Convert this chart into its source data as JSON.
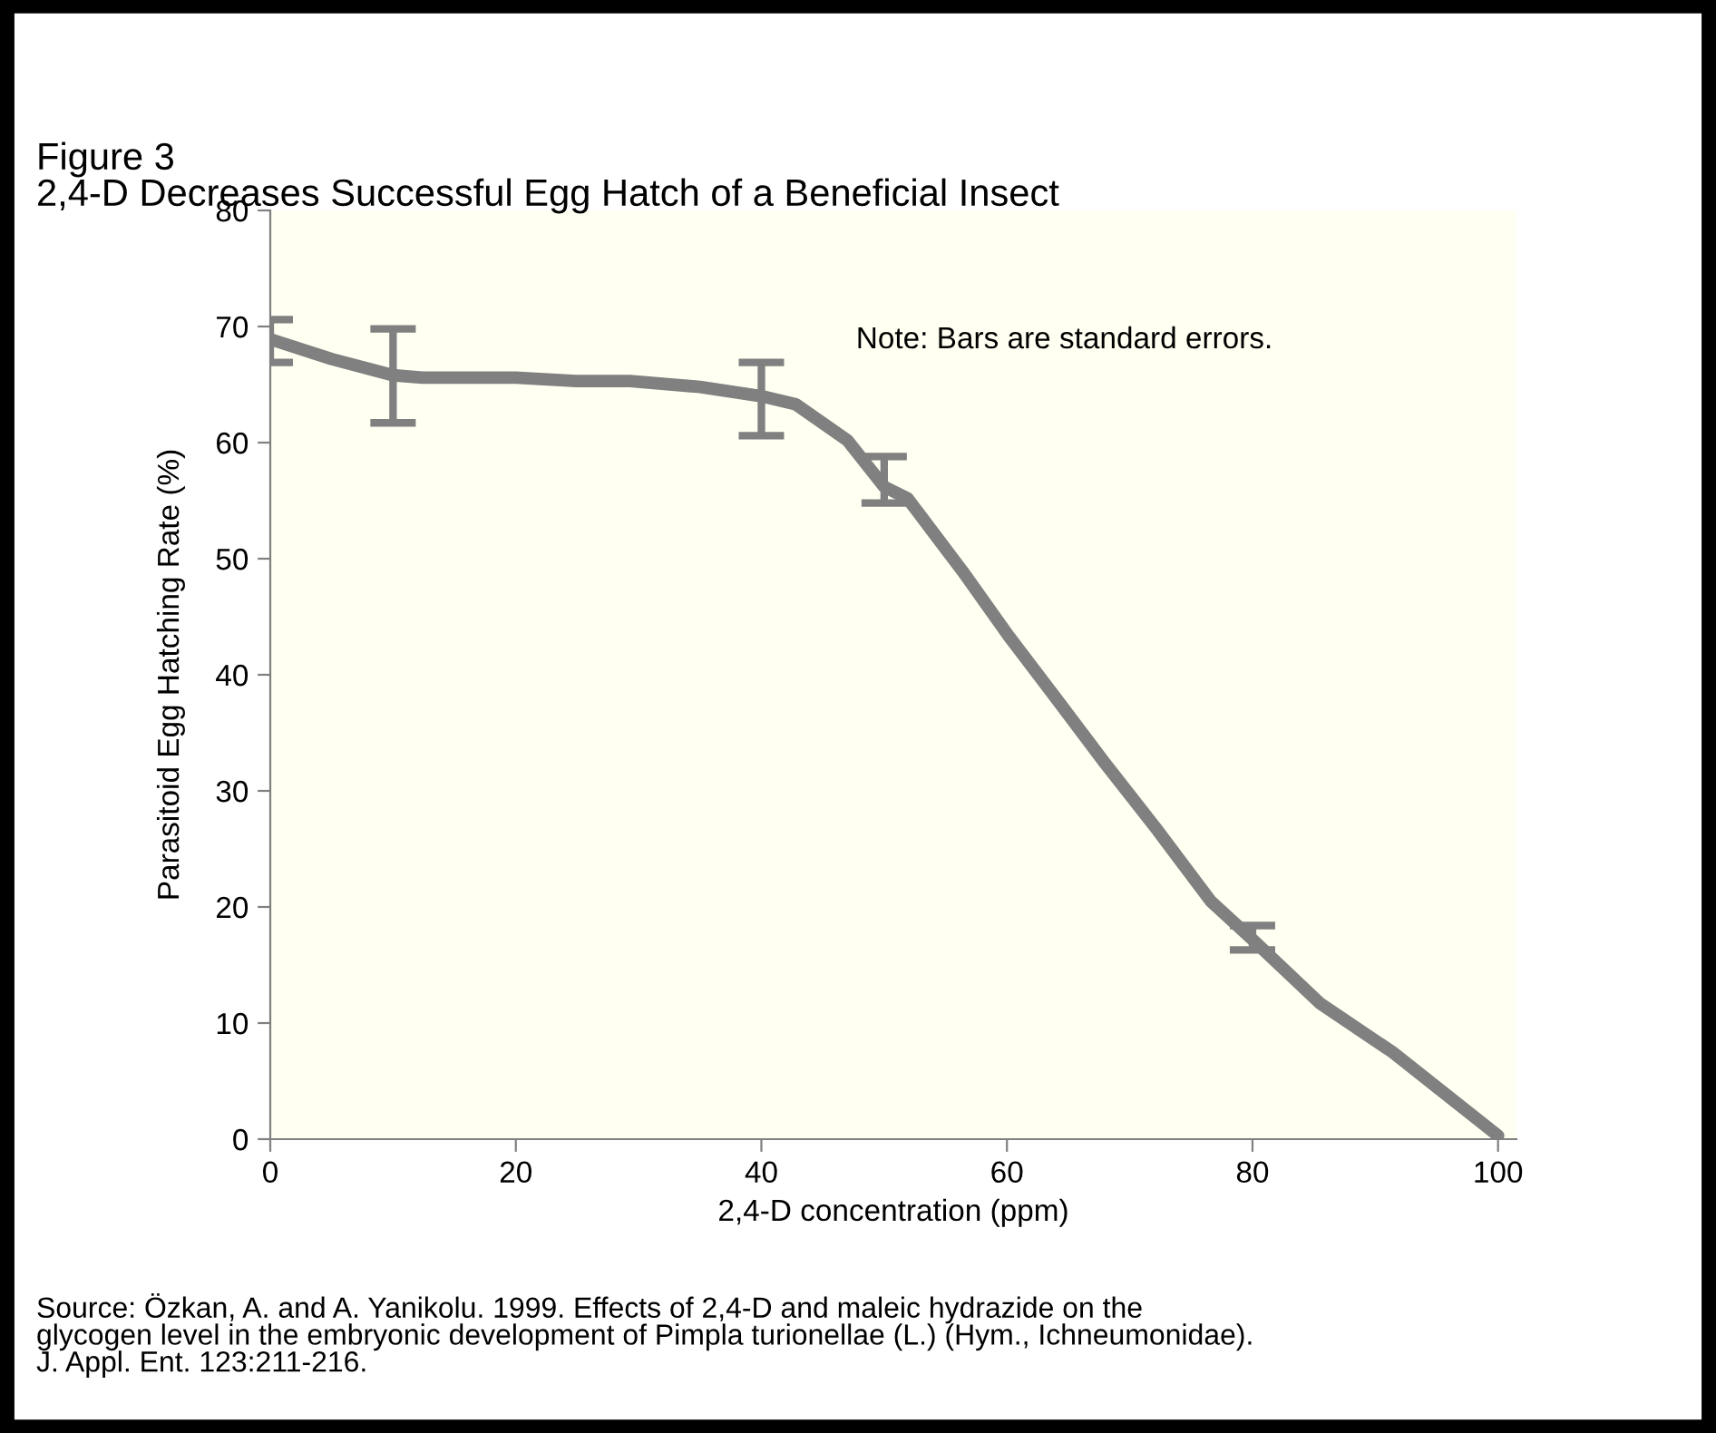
{
  "chart_data": {
    "type": "line",
    "title": "Figure 3",
    "subtitle": "2,4-D Decreases Successful Egg Hatch of a Beneficial Insect",
    "xlabel": "2,4-D concentration (ppm)",
    "ylabel": "Parasitoid Egg Hatching Rate (%)",
    "series": [
      {
        "color": "#808080",
        "x": [
          0,
          5,
          10,
          12.4,
          20,
          24.9,
          29.3,
          35,
          40,
          42.8,
          47,
          50,
          51.9,
          56.4,
          60.1,
          64.2,
          67.9,
          72.2,
          76.6,
          80,
          85.5,
          91.4,
          100
        ],
        "values": [
          68.9,
          67.2,
          65.8,
          65.6,
          65.6,
          65.3,
          65.3,
          64.8,
          64.0,
          63.3,
          60.2,
          56.2,
          55.2,
          48.9,
          43.4,
          37.7,
          32.5,
          26.7,
          20.5,
          17.2,
          11.7,
          7.5,
          0.3
        ],
        "errors": [
          [
            66.9,
            70.6
          ],
          null,
          [
            61.7,
            69.8
          ],
          null,
          null,
          null,
          null,
          null,
          [
            60.6,
            66.9
          ],
          null,
          null,
          [
            54.8,
            58.8
          ],
          null,
          null,
          null,
          null,
          null,
          null,
          null,
          [
            16.3,
            18.4
          ],
          null,
          null,
          null
        ]
      }
    ],
    "xlim": [
      0,
      101.5
    ],
    "ylim": [
      0,
      80
    ],
    "xticks": [
      0,
      20,
      40,
      60,
      80,
      100
    ],
    "yticks": [
      0,
      10,
      20,
      30,
      40,
      50,
      60,
      70,
      80
    ],
    "grid": false,
    "legend": false,
    "marker": "none",
    "line_style": "solid",
    "annotations": [
      "Note: Bars are standard errors.",
      "Source: Özkan, A. and A. Yanikolu. 1999. Effects of 2,4-D and maleic hydrazide on the\nglycogen level in the embryonic development of Pimpla turionellae (L.) (Hym., Ichneumonidae).\nJ. Appl. Ent. 123:211-216."
    ]
  }
}
